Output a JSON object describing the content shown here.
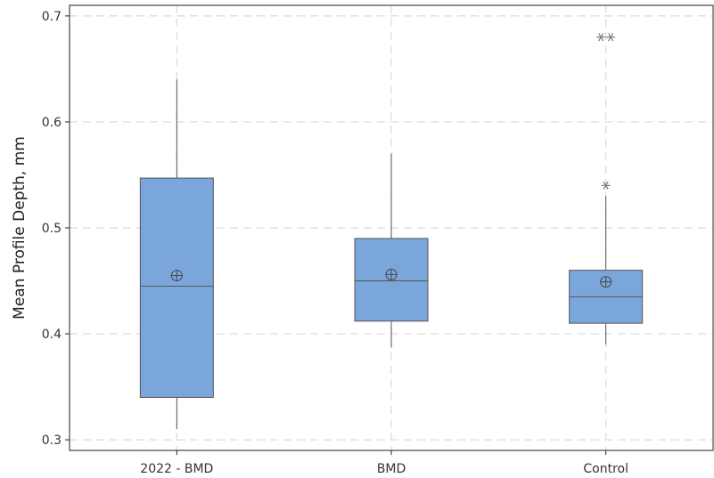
{
  "chart_data": {
    "type": "boxplot",
    "title": "",
    "xlabel": "",
    "ylabel": "Mean Profile Depth, mm",
    "ylim": [
      0.29,
      0.71
    ],
    "yticks": [
      0.3,
      0.4,
      0.5,
      0.6,
      0.7
    ],
    "ytick_labels": [
      "0.3",
      "0.4",
      "0.5",
      "0.6",
      "0.7"
    ],
    "grid": true,
    "box_color": "#7ba6dc",
    "edge_color": "#555555",
    "outlier_color": "#7a7a7a",
    "categories": [
      "2022 - BMD",
      "BMD",
      "Control"
    ],
    "boxes": [
      {
        "category": "2022 - BMD",
        "whisker_low": 0.31,
        "q1": 0.34,
        "median": 0.445,
        "q3": 0.547,
        "whisker_high": 0.64,
        "mean": 0.455,
        "outliers": []
      },
      {
        "category": "BMD",
        "whisker_low": 0.387,
        "q1": 0.412,
        "median": 0.45,
        "q3": 0.49,
        "whisker_high": 0.57,
        "mean": 0.456,
        "outliers": []
      },
      {
        "category": "Control",
        "whisker_low": 0.39,
        "q1": 0.41,
        "median": 0.435,
        "q3": 0.46,
        "whisker_high": 0.53,
        "mean": 0.449,
        "outliers": [
          0.54,
          0.68,
          0.68
        ]
      }
    ]
  }
}
